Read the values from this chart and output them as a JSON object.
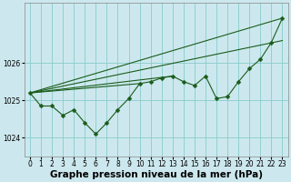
{
  "background_color": "#cce8ee",
  "grid_color": "#88cccc",
  "line_color": "#1a5c1a",
  "marker_color": "#1a5c1a",
  "xlabel": "Graphe pression niveau de la mer (hPa)",
  "xlabel_fontsize": 7.5,
  "tick_fontsize": 5.5,
  "ylim": [
    1023.5,
    1027.6
  ],
  "xlim": [
    -0.5,
    23.5
  ],
  "yticks": [
    1024,
    1025,
    1026
  ],
  "xticks": [
    0,
    1,
    2,
    3,
    4,
    5,
    6,
    7,
    8,
    9,
    10,
    11,
    12,
    13,
    14,
    15,
    16,
    17,
    18,
    19,
    20,
    21,
    22,
    23
  ],
  "main_series": [
    1025.2,
    1024.85,
    1024.85,
    1024.6,
    1024.75,
    1024.4,
    1024.1,
    1024.4,
    1024.75,
    1025.05,
    1025.45,
    1025.5,
    1025.6,
    1025.65,
    1025.5,
    1025.4,
    1025.65,
    1025.05,
    1025.1,
    1025.5,
    1025.85,
    1026.1,
    1026.55,
    1027.2
  ],
  "trend_line1": [
    [
      0,
      23
    ],
    [
      1025.2,
      1027.2
    ]
  ],
  "trend_line2": [
    [
      0,
      23
    ],
    [
      1025.2,
      1026.6
    ]
  ],
  "trend_line3": [
    [
      0,
      13
    ],
    [
      1025.2,
      1025.65
    ]
  ],
  "trend_line4": [
    [
      0,
      10
    ],
    [
      1025.2,
      1025.45
    ]
  ]
}
